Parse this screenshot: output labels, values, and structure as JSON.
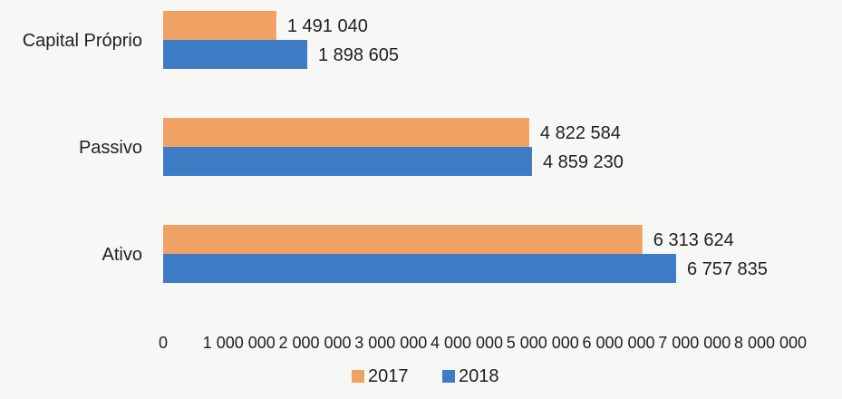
{
  "colors": {
    "series_2017": "#f0a264",
    "series_2018": "#3d7cc4",
    "text": "#1f1f1f"
  },
  "chart_data": {
    "type": "bar",
    "orientation": "horizontal",
    "categories": [
      "Capital Próprio",
      "Passivo",
      "Ativo"
    ],
    "series": [
      {
        "name": "2017",
        "values": [
          1491040,
          4822584,
          6313624
        ],
        "labels": [
          "1 491 040",
          "4 822 584",
          "6 313 624"
        ]
      },
      {
        "name": "2018",
        "values": [
          1898605,
          4859230,
          6757835
        ],
        "labels": [
          "1 898 605",
          "4 859 230",
          "6 757 835"
        ]
      }
    ],
    "xlim": [
      0,
      8000000
    ],
    "x_ticks": [
      0,
      1000000,
      2000000,
      3000000,
      4000000,
      5000000,
      6000000,
      7000000,
      8000000
    ],
    "x_tick_labels": [
      "0",
      "1 000 000",
      "2 000 000",
      "3 000 000",
      "4 000 000",
      "5 000 000",
      "6 000 000",
      "7 000 000",
      "8 000 000"
    ],
    "grid": false,
    "legend_position": "bottom",
    "title": "",
    "xlabel": "",
    "ylabel": ""
  }
}
